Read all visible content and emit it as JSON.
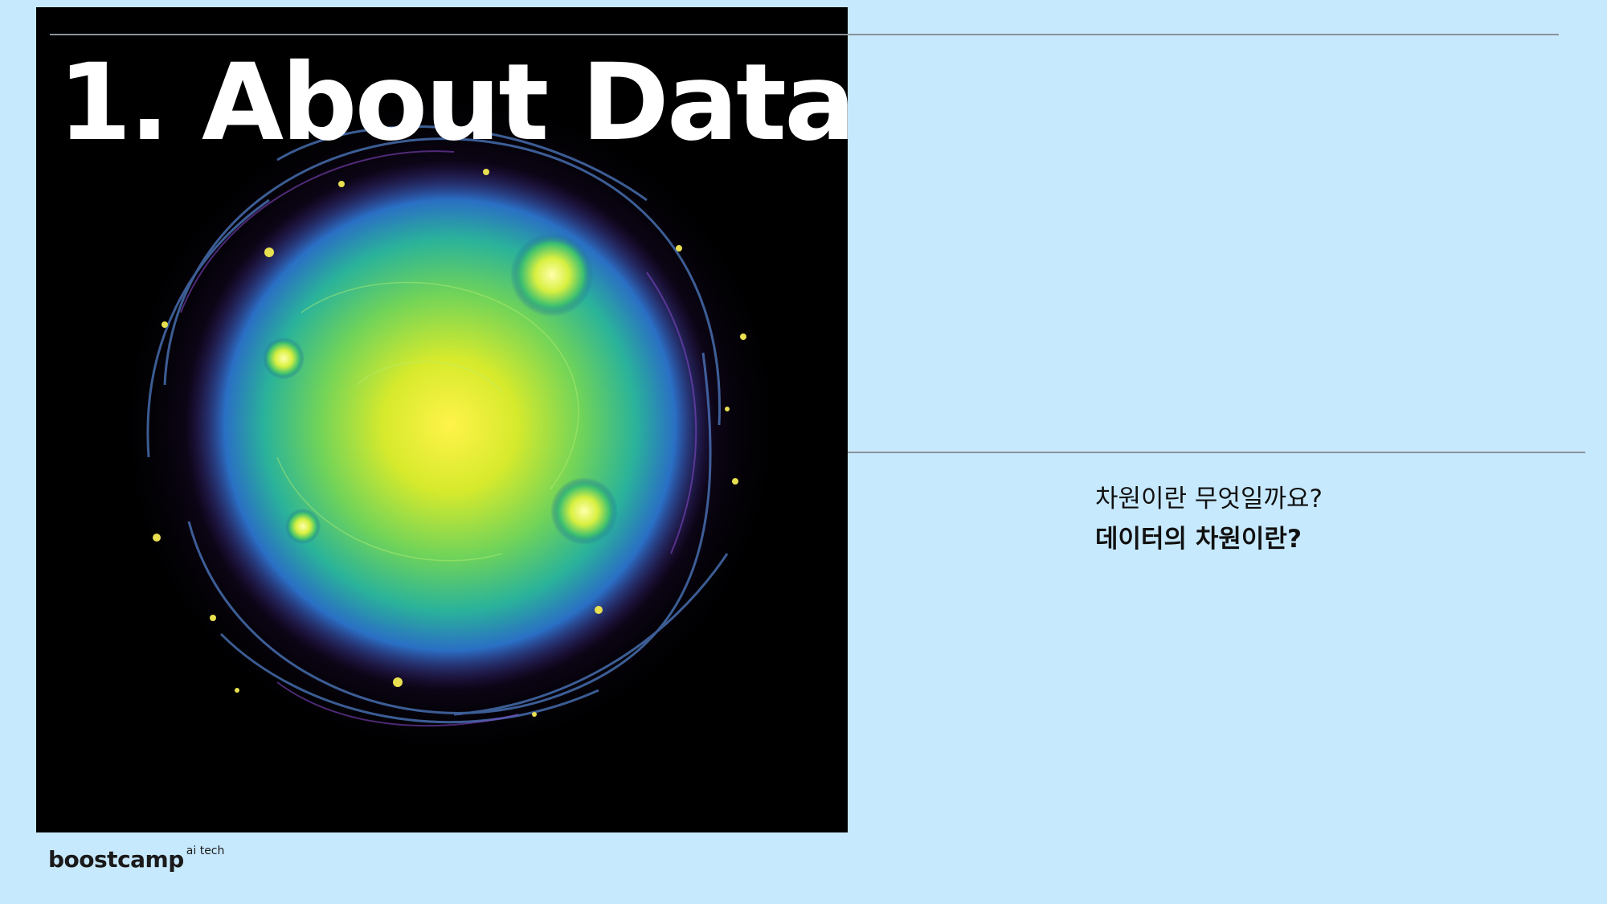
{
  "slide": {
    "title": "1. About Data",
    "question": "차원이란 무엇일까요?",
    "question_bold": "데이터의 차원이란?"
  },
  "logo": {
    "name": "boostcamp",
    "superscript": "ai tech"
  },
  "colors": {
    "background": "#c7e9fd",
    "image_background": "#000000",
    "divider": "#8a9298",
    "title": "#ffffff",
    "text": "#111111"
  },
  "hero_image": {
    "subject": "abstract glowing sphere of swirling green-yellow lines on black"
  }
}
